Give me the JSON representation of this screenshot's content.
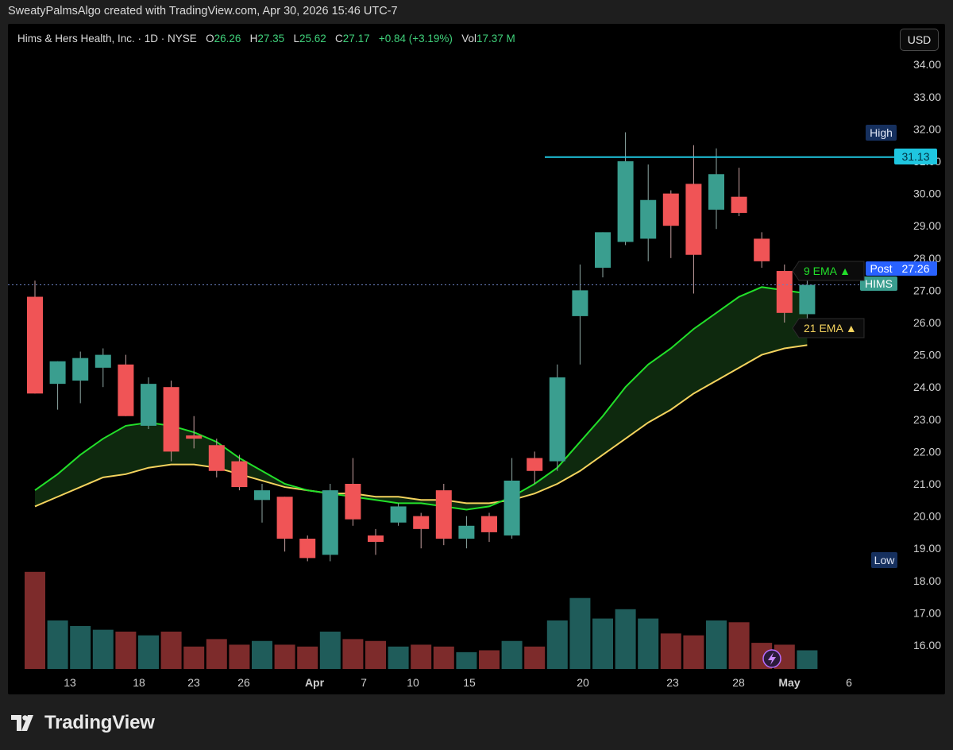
{
  "header": {
    "attribution": "SweatyPalmsAlgo created with TradingView.com, Apr 30, 2026 15:46 UTC-7"
  },
  "legend": {
    "symbol_desc": "Hims & Hers Health, Inc. · 1D · NYSE",
    "open_label": "O",
    "open": "26.26",
    "high_label": "H",
    "high": "27.35",
    "low_label": "L",
    "low": "25.62",
    "close_label": "C",
    "close": "27.17",
    "change": "+0.84 (+3.19%)",
    "vol_label": "Vol",
    "volume": "17.37 M"
  },
  "currency_button": "USD",
  "footer": {
    "brand": "TradingView"
  },
  "colors": {
    "up": "#3a9e8f",
    "down": "#f05456",
    "vol_up": "#1f5c5a",
    "vol_down": "#7d2b2b",
    "ema9": "#22e02a",
    "ema21": "#f4d35e",
    "high_line": "#1fc6e0",
    "post_badge": "#2962ff"
  },
  "chart_data": {
    "type": "candlestick",
    "symbol": "HIMS",
    "price_axis": {
      "ticks": [
        "16.00",
        "17.00",
        "18.00",
        "19.00",
        "20.00",
        "21.00",
        "22.00",
        "23.00",
        "24.00",
        "25.00",
        "26.00",
        "27.00",
        "28.00",
        "29.00",
        "30.00",
        "31.00",
        "32.00",
        "33.00",
        "34.00"
      ]
    },
    "time_axis": {
      "ticks": [
        "13",
        "18",
        "23",
        "26",
        "Apr",
        "7",
        "10",
        "15",
        "20",
        "23",
        "28",
        "May",
        "6"
      ]
    },
    "candles": [
      {
        "o": 26.8,
        "h": 27.3,
        "l": 23.8,
        "c": 23.8
      },
      {
        "o": 24.1,
        "h": 24.8,
        "l": 23.3,
        "c": 24.8
      },
      {
        "o": 24.2,
        "h": 25.1,
        "l": 23.5,
        "c": 24.9
      },
      {
        "o": 24.6,
        "h": 25.2,
        "l": 24.0,
        "c": 25.0
      },
      {
        "o": 24.7,
        "h": 25.0,
        "l": 23.1,
        "c": 23.1
      },
      {
        "o": 22.8,
        "h": 24.3,
        "l": 22.7,
        "c": 24.1
      },
      {
        "o": 24.0,
        "h": 24.2,
        "l": 21.7,
        "c": 22.0
      },
      {
        "o": 22.5,
        "h": 23.1,
        "l": 22.1,
        "c": 22.4
      },
      {
        "o": 22.2,
        "h": 22.4,
        "l": 21.2,
        "c": 21.4
      },
      {
        "o": 21.7,
        "h": 21.9,
        "l": 20.8,
        "c": 20.9
      },
      {
        "o": 20.5,
        "h": 21.0,
        "l": 19.8,
        "c": 20.8
      },
      {
        "o": 20.6,
        "h": 20.6,
        "l": 18.9,
        "c": 19.3
      },
      {
        "o": 19.3,
        "h": 19.4,
        "l": 18.6,
        "c": 18.7
      },
      {
        "o": 18.8,
        "h": 21.0,
        "l": 18.6,
        "c": 20.8
      },
      {
        "o": 21.0,
        "h": 21.8,
        "l": 19.7,
        "c": 19.9
      },
      {
        "o": 19.4,
        "h": 19.6,
        "l": 18.8,
        "c": 19.2
      },
      {
        "o": 19.8,
        "h": 20.4,
        "l": 19.7,
        "c": 20.3
      },
      {
        "o": 20.0,
        "h": 20.1,
        "l": 19.0,
        "c": 19.6
      },
      {
        "o": 20.8,
        "h": 21.0,
        "l": 19.1,
        "c": 19.3
      },
      {
        "o": 19.3,
        "h": 20.0,
        "l": 19.0,
        "c": 19.7
      },
      {
        "o": 20.0,
        "h": 20.1,
        "l": 19.2,
        "c": 19.5
      },
      {
        "o": 19.4,
        "h": 21.8,
        "l": 19.3,
        "c": 21.1
      },
      {
        "o": 21.8,
        "h": 22.0,
        "l": 21.0,
        "c": 21.4
      },
      {
        "o": 21.7,
        "h": 24.7,
        "l": 21.4,
        "c": 24.3
      },
      {
        "o": 26.2,
        "h": 27.8,
        "l": 24.7,
        "c": 27.0
      },
      {
        "o": 27.7,
        "h": 28.8,
        "l": 27.4,
        "c": 28.8
      },
      {
        "o": 28.5,
        "h": 31.9,
        "l": 28.4,
        "c": 31.0
      },
      {
        "o": 28.6,
        "h": 30.9,
        "l": 27.9,
        "c": 29.8
      },
      {
        "o": 30.0,
        "h": 30.1,
        "l": 28.0,
        "c": 29.0
      },
      {
        "o": 30.3,
        "h": 31.5,
        "l": 26.9,
        "c": 28.1
      },
      {
        "o": 29.5,
        "h": 31.4,
        "l": 28.9,
        "c": 30.6
      },
      {
        "o": 29.9,
        "h": 30.8,
        "l": 29.3,
        "c": 29.4
      },
      {
        "o": 28.6,
        "h": 28.8,
        "l": 27.7,
        "c": 27.9
      },
      {
        "o": 27.6,
        "h": 27.8,
        "l": 26.0,
        "c": 26.3
      },
      {
        "o": 26.26,
        "h": 27.35,
        "l": 25.62,
        "c": 27.17
      }
    ],
    "ema9": [
      20.8,
      21.3,
      21.9,
      22.4,
      22.8,
      22.9,
      22.8,
      22.6,
      22.3,
      21.8,
      21.4,
      21.0,
      20.8,
      20.7,
      20.6,
      20.5,
      20.4,
      20.4,
      20.3,
      20.2,
      20.3,
      20.6,
      21.0,
      21.5,
      22.3,
      23.1,
      24.0,
      24.7,
      25.2,
      25.8,
      26.3,
      26.8,
      27.1,
      27.0,
      26.9
    ],
    "ema21": [
      20.3,
      20.6,
      20.9,
      21.2,
      21.3,
      21.5,
      21.6,
      21.6,
      21.5,
      21.3,
      21.1,
      20.9,
      20.8,
      20.7,
      20.7,
      20.6,
      20.6,
      20.5,
      20.5,
      20.4,
      20.4,
      20.5,
      20.7,
      21.0,
      21.4,
      21.9,
      22.4,
      22.9,
      23.3,
      23.8,
      24.2,
      24.6,
      25.0,
      25.2,
      25.3
    ],
    "volumes": [
      2.6,
      1.3,
      1.15,
      1.05,
      1.0,
      0.9,
      1.0,
      0.6,
      0.8,
      0.65,
      0.75,
      0.65,
      0.6,
      1.0,
      0.8,
      0.75,
      0.6,
      0.65,
      0.6,
      0.45,
      0.5,
      0.75,
      0.6,
      1.3,
      1.9,
      1.35,
      1.6,
      1.35,
      0.95,
      0.9,
      1.3,
      1.25,
      0.7,
      0.65,
      0.5
    ],
    "high_level": 31.13,
    "labels": {
      "high": "High",
      "low": "Low",
      "post": "Post",
      "post_price": "27.26",
      "high_price": "31.13",
      "symbol_tag": "HIMS",
      "ema9": "9 EMA ▲",
      "ema21": "21 EMA ▲"
    }
  }
}
